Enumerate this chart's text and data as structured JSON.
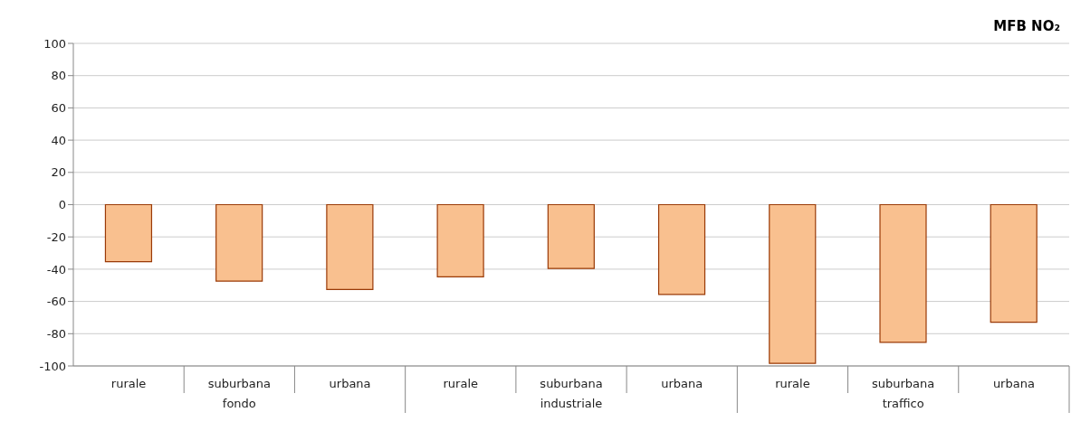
{
  "chart_data": {
    "type": "bar",
    "title": "MFB NO₂",
    "categories": [
      "rurale",
      "suburbana",
      "urbana",
      "rurale",
      "suburbana",
      "urbana",
      "rurale",
      "suburbana",
      "urbana"
    ],
    "values": [
      -35.4,
      -47.4,
      -52.6,
      -44.8,
      -39.6,
      -55.7,
      -98.4,
      -85.4,
      -72.9
    ],
    "color": "#f9c08f",
    "annotations": [
      "fondo",
      "industriale",
      "traffico"
    ],
    "ylim": [
      -100,
      100
    ],
    "yticks": [
      -100,
      -80,
      -60,
      -40,
      -20,
      0,
      20,
      40,
      60,
      80,
      100
    ],
    "grid": "y"
  }
}
